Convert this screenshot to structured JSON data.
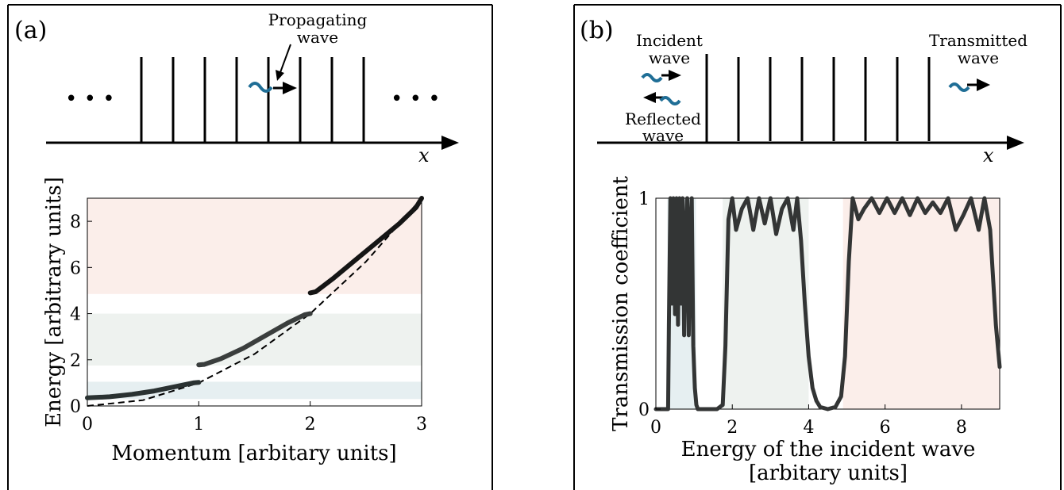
{
  "panel_a": {
    "label": "(a)",
    "annotation": "Propagating\nwave",
    "dots_left": "• • •",
    "dots_right": "• • •",
    "axis_label": "x"
  },
  "panel_b": {
    "label": "(b)",
    "incident": "Incident\nwave",
    "reflected": "Reflected\nwave",
    "transmitted": "Transmitted\nwave",
    "axis_label": "x"
  },
  "colors": {
    "band_red": "#fbeeea",
    "band_green": "#eef2ef",
    "band_blue": "#e6eff1",
    "wave_blue": "#1f6e96",
    "curve_dark": "#2f3a3a",
    "curve_brown": "#3d302c"
  },
  "chart_data": [
    {
      "type": "line",
      "xlabel": "Momentum [arbitary units]",
      "ylabel": "Energy [arbitrary units]",
      "xlim": [
        0,
        3
      ],
      "ylim": [
        0,
        9
      ],
      "xticks": [
        0,
        1,
        2,
        3
      ],
      "yticks": [
        0,
        2,
        4,
        6,
        8
      ],
      "bands": [
        {
          "from": 0.3,
          "to": 1.05,
          "color": "#e6eff1"
        },
        {
          "from": 1.75,
          "to": 4.0,
          "color": "#eef2ef"
        },
        {
          "from": 4.85,
          "to": 9.0,
          "color": "#fbeeea"
        }
      ],
      "series": [
        {
          "x": [
            0,
            0.2,
            0.4,
            0.6,
            0.8,
            0.95,
            1.0
          ],
          "y": [
            0.35,
            0.4,
            0.5,
            0.65,
            0.85,
            1.0,
            1.02
          ]
        },
        {
          "x": [
            1.0,
            1.05,
            1.2,
            1.4,
            1.6,
            1.8,
            1.95,
            2.0
          ],
          "y": [
            1.78,
            1.8,
            2.05,
            2.5,
            3.05,
            3.6,
            3.95,
            4.0
          ]
        },
        {
          "x": [
            2.0,
            2.05,
            2.2,
            2.4,
            2.6,
            2.8,
            2.95,
            3.0
          ],
          "y": [
            4.9,
            4.95,
            5.5,
            6.3,
            7.1,
            7.9,
            8.6,
            9.0
          ]
        }
      ],
      "reference": {
        "x": [
          0,
          0.5,
          1,
          1.5,
          2,
          2.5,
          3
        ],
        "y": [
          0,
          0.25,
          1,
          2.25,
          4,
          6.25,
          9
        ]
      }
    },
    {
      "type": "line",
      "xlabel": "Energy of the incident wave\n[arbitary units]",
      "ylabel": "Transmission coefficient",
      "xlim": [
        0,
        9
      ],
      "ylim": [
        0,
        1
      ],
      "xticks": [
        0,
        2,
        4,
        6,
        8
      ],
      "yticks": [
        0,
        1
      ],
      "bands": [
        {
          "from": 0.3,
          "to": 1.05,
          "color": "#e6eff1"
        },
        {
          "from": 1.75,
          "to": 4.0,
          "color": "#eef2ef"
        },
        {
          "from": 4.9,
          "to": 9.0,
          "color": "#fbeeea"
        }
      ],
      "series": [
        {
          "x": [
            0,
            0.32,
            0.34,
            0.38,
            0.42,
            0.46,
            0.5,
            0.54,
            0.58,
            0.62,
            0.66,
            0.7,
            0.74,
            0.78,
            0.82,
            0.86,
            0.9,
            0.94,
            0.98,
            1.02,
            1.06,
            1.1,
            1.3,
            1.6,
            1.75,
            1.82,
            1.9,
            2.0,
            2.1,
            2.25,
            2.4,
            2.55,
            2.7,
            2.85,
            3.0,
            3.15,
            3.3,
            3.45,
            3.6,
            3.7,
            3.8,
            3.9,
            4.0,
            4.1,
            4.2,
            4.3,
            4.5,
            4.7,
            4.85,
            4.95,
            5.05,
            5.15,
            5.3,
            5.45,
            5.65,
            5.85,
            6.05,
            6.25,
            6.45,
            6.65,
            6.85,
            7.05,
            7.25,
            7.45,
            7.65,
            7.85,
            8.05,
            8.25,
            8.45,
            8.6,
            8.75,
            8.9,
            9.0
          ],
          "y": [
            0,
            0,
            0.4,
            1.0,
            0.5,
            1.0,
            0.45,
            1.0,
            0.4,
            1.0,
            0.5,
            1.0,
            0.35,
            0.8,
            1.0,
            0.35,
            0.85,
            1.0,
            0.3,
            0.1,
            0.02,
            0.0,
            0.0,
            0.0,
            0.02,
            0.3,
            0.9,
            1.0,
            0.85,
            0.95,
            1.0,
            0.85,
            1.0,
            0.88,
            1.0,
            0.83,
            0.95,
            1.0,
            0.85,
            1.0,
            0.8,
            0.5,
            0.25,
            0.1,
            0.04,
            0.01,
            0.0,
            0.01,
            0.06,
            0.25,
            0.7,
            1.0,
            0.9,
            0.95,
            1.0,
            0.93,
            1.0,
            0.93,
            1.0,
            0.92,
            1.0,
            0.93,
            0.98,
            0.93,
            1.0,
            0.85,
            0.92,
            1.0,
            0.85,
            1.0,
            0.85,
            0.4,
            0.2
          ]
        }
      ]
    }
  ]
}
